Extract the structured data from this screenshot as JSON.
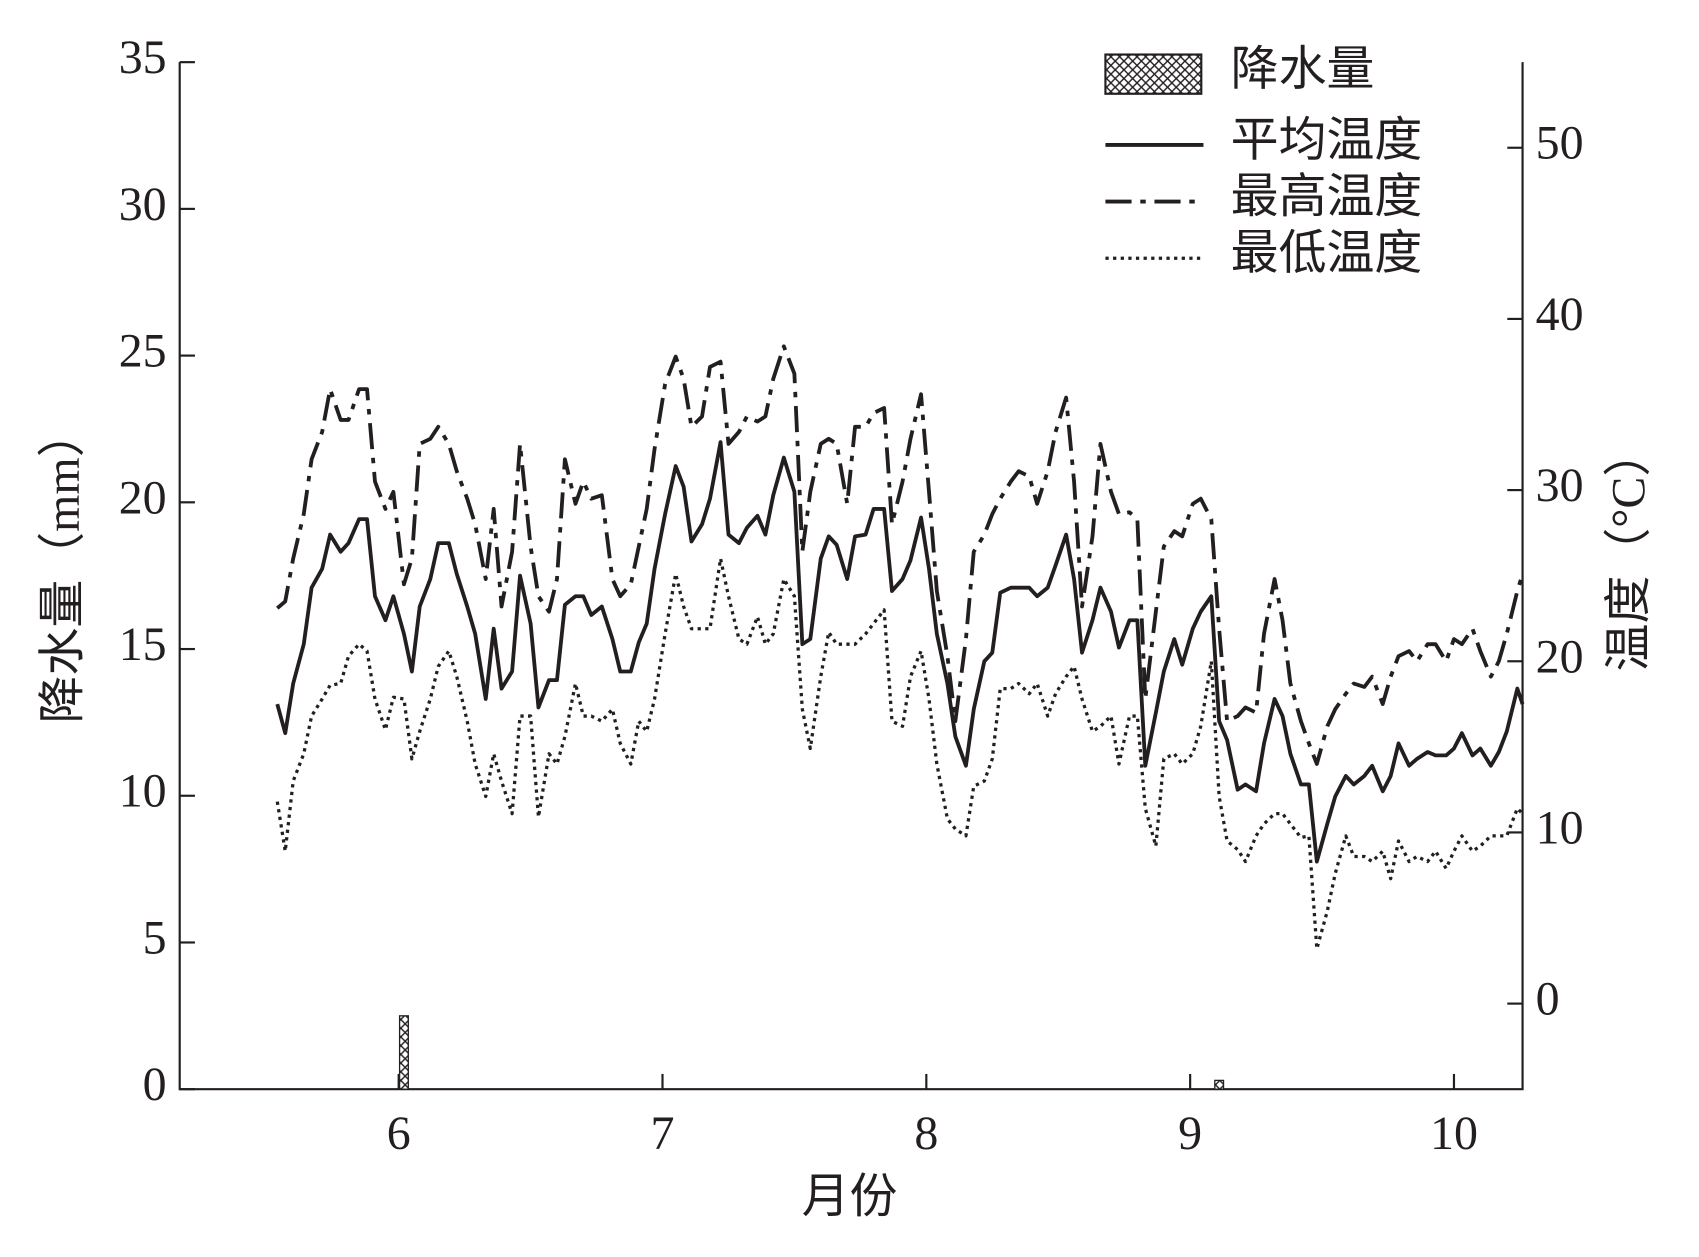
{
  "chart_data": {
    "type": "line",
    "xlabel": "月份",
    "ylabel": "降水量（mm）",
    "y2label": "温度（°C）",
    "xlim": [
      5.17,
      10.26
    ],
    "xticks": [
      6,
      7,
      8,
      9,
      10
    ],
    "ylim": [
      0,
      35
    ],
    "yticks": [
      0,
      5,
      10,
      15,
      20,
      25,
      30,
      35
    ],
    "y2lim": [
      -5,
      55
    ],
    "y2ticks": [
      0,
      10,
      20,
      30,
      40,
      50
    ],
    "legend": "upper right",
    "x": [
      5.54,
      5.57,
      5.6,
      5.64,
      5.67,
      5.71,
      5.74,
      5.78,
      5.81,
      5.85,
      5.88,
      5.91,
      5.95,
      5.98,
      6.02,
      6.05,
      6.08,
      6.12,
      6.15,
      6.19,
      6.22,
      6.26,
      6.29,
      6.33,
      6.36,
      6.39,
      6.43,
      6.46,
      6.5,
      6.53,
      6.57,
      6.6,
      6.63,
      6.67,
      6.7,
      6.73,
      6.77,
      6.81,
      6.84,
      6.88,
      6.91,
      6.94,
      6.97,
      7.01,
      7.05,
      7.08,
      7.11,
      7.15,
      7.18,
      7.22,
      7.25,
      7.29,
      7.32,
      7.36,
      7.39,
      7.42,
      7.46,
      7.5,
      7.53,
      7.56,
      7.6,
      7.63,
      7.66,
      7.7,
      7.73,
      7.77,
      7.8,
      7.84,
      7.87,
      7.91,
      7.94,
      7.98,
      8.01,
      8.04,
      8.08,
      8.11,
      8.15,
      8.18,
      8.22,
      8.25,
      8.28,
      8.32,
      8.35,
      8.39,
      8.42,
      8.46,
      8.49,
      8.53,
      8.56,
      8.59,
      8.63,
      8.66,
      8.7,
      8.73,
      8.77,
      8.8,
      8.83,
      8.87,
      8.9,
      8.94,
      8.97,
      9.01,
      9.04,
      9.08,
      9.11,
      9.14,
      9.18,
      9.21,
      9.25,
      9.28,
      9.32,
      9.35,
      9.38,
      9.42,
      9.45,
      9.48,
      9.52,
      9.55,
      9.59,
      9.62,
      9.66,
      9.69,
      9.73,
      9.76,
      9.79,
      9.83,
      9.86,
      9.9,
      9.93,
      9.97,
      10.0,
      10.03,
      10.07,
      10.1,
      10.14,
      10.17,
      10.2,
      10.24,
      10.26
    ],
    "series": [
      {
        "name": "降水量",
        "type": "bar",
        "color": "#231f20",
        "hatch": "cross",
        "x": [
          6.02,
          9.11
        ],
        "values": [
          2.5,
          0.3
        ]
      },
      {
        "name": "平均温度",
        "type": "line",
        "axis": "y2",
        "color": "#231f20",
        "linestyle": "solid",
        "values": [
          17.5,
          15.8,
          18.7,
          21.0,
          24.3,
          25.4,
          27.4,
          26.4,
          26.9,
          28.3,
          28.3,
          23.8,
          22.4,
          23.8,
          21.6,
          19.4,
          23.2,
          24.8,
          26.9,
          26.9,
          25.1,
          23.2,
          21.6,
          17.8,
          21.9,
          18.4,
          19.4,
          25.0,
          22.2,
          17.3,
          18.9,
          18.9,
          23.3,
          23.8,
          23.8,
          22.7,
          23.2,
          21.3,
          19.4,
          19.4,
          21.1,
          22.2,
          25.4,
          28.6,
          31.4,
          30.2,
          27.0,
          28.0,
          29.5,
          32.8,
          27.4,
          26.9,
          27.8,
          28.5,
          27.4,
          29.7,
          31.9,
          29.9,
          21.0,
          21.3,
          26.0,
          27.3,
          26.8,
          24.8,
          27.3,
          27.4,
          28.9,
          28.9,
          24.1,
          24.8,
          25.9,
          28.4,
          25.4,
          21.6,
          18.7,
          15.6,
          13.9,
          17.2,
          20.0,
          20.5,
          24.0,
          24.3,
          24.3,
          24.3,
          23.8,
          24.3,
          25.6,
          27.4,
          24.8,
          20.5,
          22.4,
          24.3,
          22.9,
          20.8,
          22.4,
          22.4,
          13.9,
          17.0,
          19.4,
          21.3,
          19.8,
          21.9,
          22.9,
          23.8,
          16.5,
          15.4,
          12.5,
          12.8,
          12.4,
          15.2,
          17.8,
          16.8,
          14.6,
          12.8,
          12.8,
          8.3,
          10.5,
          12.1,
          13.3,
          12.8,
          13.3,
          13.9,
          12.4,
          13.3,
          15.2,
          13.9,
          14.3,
          14.7,
          14.5,
          14.5,
          14.9,
          15.8,
          14.5,
          14.9,
          13.9,
          14.7,
          15.9,
          18.4,
          17.5
        ]
      },
      {
        "name": "最高温度",
        "type": "line",
        "axis": "y2",
        "color": "#231f20",
        "linestyle": "dashdot",
        "values": [
          23.1,
          23.5,
          26.0,
          28.6,
          31.8,
          33.4,
          35.9,
          34.1,
          34.1,
          35.9,
          35.9,
          30.5,
          28.9,
          29.9,
          24.5,
          26.0,
          32.7,
          33.0,
          33.7,
          32.7,
          31.1,
          29.5,
          28.0,
          24.8,
          28.9,
          23.2,
          26.4,
          32.7,
          26.7,
          23.8,
          22.9,
          24.8,
          31.8,
          29.2,
          30.5,
          29.5,
          29.7,
          24.8,
          23.8,
          24.5,
          26.7,
          28.9,
          32.4,
          36.2,
          37.8,
          36.5,
          33.7,
          34.3,
          37.2,
          37.5,
          32.7,
          33.4,
          34.3,
          34.0,
          34.3,
          36.5,
          38.4,
          36.8,
          26.4,
          29.9,
          32.7,
          33.0,
          32.7,
          29.2,
          33.7,
          33.7,
          34.5,
          34.8,
          28.0,
          30.5,
          33.0,
          35.6,
          29.9,
          24.1,
          20.3,
          16.5,
          21.3,
          26.4,
          27.4,
          28.6,
          29.5,
          30.5,
          31.1,
          30.8,
          29.2,
          31.1,
          33.4,
          35.4,
          30.5,
          23.2,
          27.3,
          32.7,
          29.9,
          28.6,
          28.7,
          28.3,
          17.8,
          22.9,
          26.7,
          27.6,
          27.3,
          29.2,
          29.5,
          28.3,
          21.9,
          16.5,
          16.8,
          17.3,
          17.0,
          21.6,
          24.8,
          22.4,
          18.7,
          16.5,
          15.2,
          14.0,
          16.2,
          17.2,
          18.1,
          18.7,
          18.5,
          19.1,
          17.5,
          19.1,
          20.3,
          20.6,
          20.0,
          21.0,
          21.0,
          20.0,
          21.3,
          21.0,
          21.9,
          20.6,
          19.1,
          20.0,
          21.6,
          24.1,
          25.1
        ]
      },
      {
        "name": "最低温度",
        "type": "line",
        "axis": "y2",
        "color": "#231f20",
        "linestyle": "dotted",
        "values": [
          11.8,
          8.9,
          13.0,
          14.6,
          16.8,
          17.8,
          18.6,
          18.7,
          20.3,
          21.0,
          20.6,
          17.8,
          16.0,
          17.9,
          17.8,
          14.3,
          15.9,
          17.8,
          19.7,
          20.6,
          19.1,
          16.5,
          14.0,
          12.1,
          14.6,
          13.0,
          11.1,
          16.8,
          16.8,
          10.9,
          14.6,
          14.0,
          15.6,
          18.7,
          16.8,
          16.8,
          16.5,
          17.2,
          15.2,
          14.0,
          16.5,
          15.9,
          17.8,
          21.6,
          25.1,
          23.2,
          21.9,
          21.9,
          21.9,
          26.0,
          23.8,
          21.3,
          21.0,
          22.6,
          21.0,
          21.6,
          24.8,
          23.8,
          17.2,
          14.9,
          19.1,
          21.7,
          21.0,
          21.0,
          21.0,
          21.6,
          22.2,
          23.0,
          16.5,
          16.2,
          19.1,
          20.6,
          17.8,
          14.0,
          10.8,
          10.2,
          9.8,
          12.7,
          13.0,
          14.3,
          18.4,
          18.4,
          18.7,
          18.1,
          18.7,
          16.8,
          18.1,
          19.1,
          19.7,
          17.8,
          15.9,
          16.2,
          16.8,
          14.0,
          16.8,
          16.8,
          11.4,
          9.2,
          14.3,
          14.6,
          14.0,
          14.6,
          16.2,
          20.0,
          12.1,
          9.5,
          9.0,
          8.3,
          9.8,
          10.5,
          11.1,
          11.1,
          10.5,
          9.7,
          9.8,
          3.2,
          5.4,
          7.6,
          9.8,
          8.6,
          8.6,
          8.3,
          8.9,
          7.3,
          9.5,
          8.3,
          8.6,
          8.3,
          8.9,
          7.9,
          8.9,
          9.8,
          8.9,
          9.2,
          9.8,
          9.8,
          9.8,
          11.4,
          11.1
        ]
      }
    ]
  }
}
